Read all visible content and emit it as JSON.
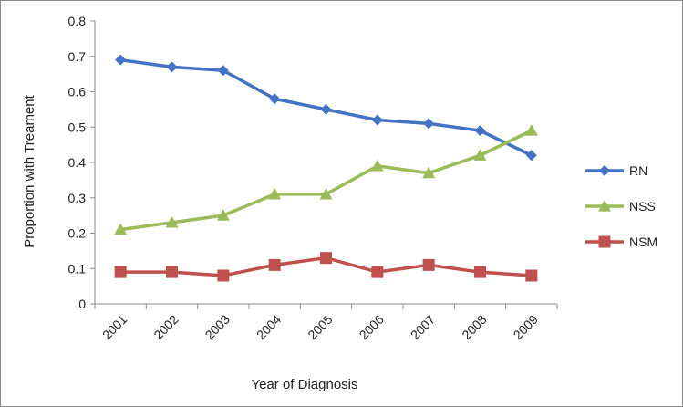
{
  "chart_data": {
    "type": "line",
    "categories": [
      "2001",
      "2002",
      "2003",
      "2004",
      "2005",
      "2006",
      "2007",
      "2008",
      "2009"
    ],
    "series": [
      {
        "name": "RN",
        "color": "#4472C4",
        "marker": "diamond",
        "values": [
          0.69,
          0.67,
          0.66,
          0.58,
          0.55,
          0.52,
          0.51,
          0.49,
          0.42
        ]
      },
      {
        "name": "NSS",
        "color": "#9BBB59",
        "marker": "triangle",
        "values": [
          0.21,
          0.23,
          0.25,
          0.31,
          0.31,
          0.39,
          0.37,
          0.42,
          0.49
        ]
      },
      {
        "name": "NSM",
        "color": "#C0504D",
        "marker": "square",
        "values": [
          0.09,
          0.09,
          0.08,
          0.11,
          0.13,
          0.09,
          0.11,
          0.09,
          0.08
        ]
      }
    ],
    "xlabel": "Year of Diagnosis",
    "ylabel": "Proportion with Treament",
    "ylim": [
      0,
      0.8
    ],
    "yticks": [
      "0",
      "0.1",
      "0.2",
      "0.3",
      "0.4",
      "0.5",
      "0.6",
      "0.7",
      "0.8"
    ],
    "grid": false,
    "legend": "right"
  }
}
